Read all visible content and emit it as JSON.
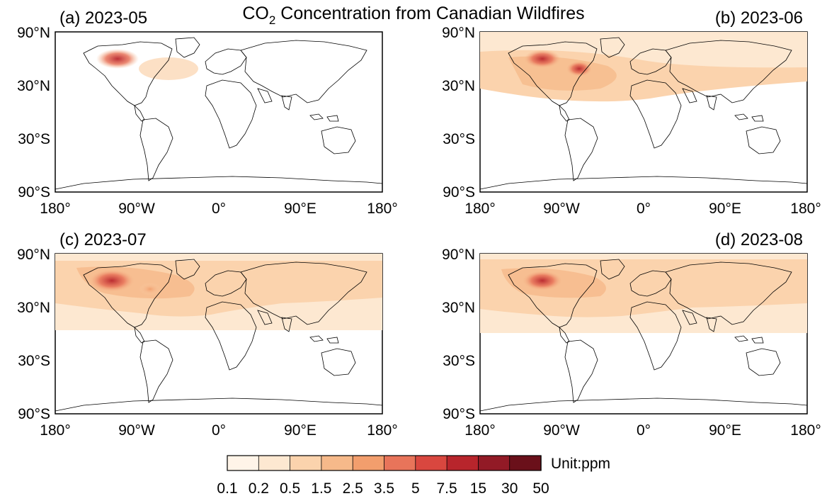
{
  "title_main": "CO",
  "title_sub": "2",
  "title_rest": " Concentration from Canadian Wildfires",
  "panels": [
    {
      "label": "(a) 2023-05"
    },
    {
      "label": "(b) 2023-06"
    },
    {
      "label": "(c) 2023-07"
    },
    {
      "label": "(d) 2023-08"
    }
  ],
  "lat_ticks": [
    "90°N",
    "30°N",
    "30°S",
    "90°S"
  ],
  "lon_ticks": [
    "180°",
    "90°W",
    "0°",
    "90°E",
    "180°"
  ],
  "colorbar": {
    "unit": "Unit:ppm",
    "tick_labels": [
      "0.1",
      "0.2",
      "0.5",
      "1.5",
      "2.5",
      "3.5",
      "5",
      "7.5",
      "15",
      "30",
      "50"
    ],
    "colors": [
      "#fff4e8",
      "#fde8d1",
      "#fbd3ad",
      "#f6b98a",
      "#f29e6d",
      "#e8745a",
      "#d9473f",
      "#b8252c",
      "#921a26",
      "#6a101a"
    ]
  }
}
